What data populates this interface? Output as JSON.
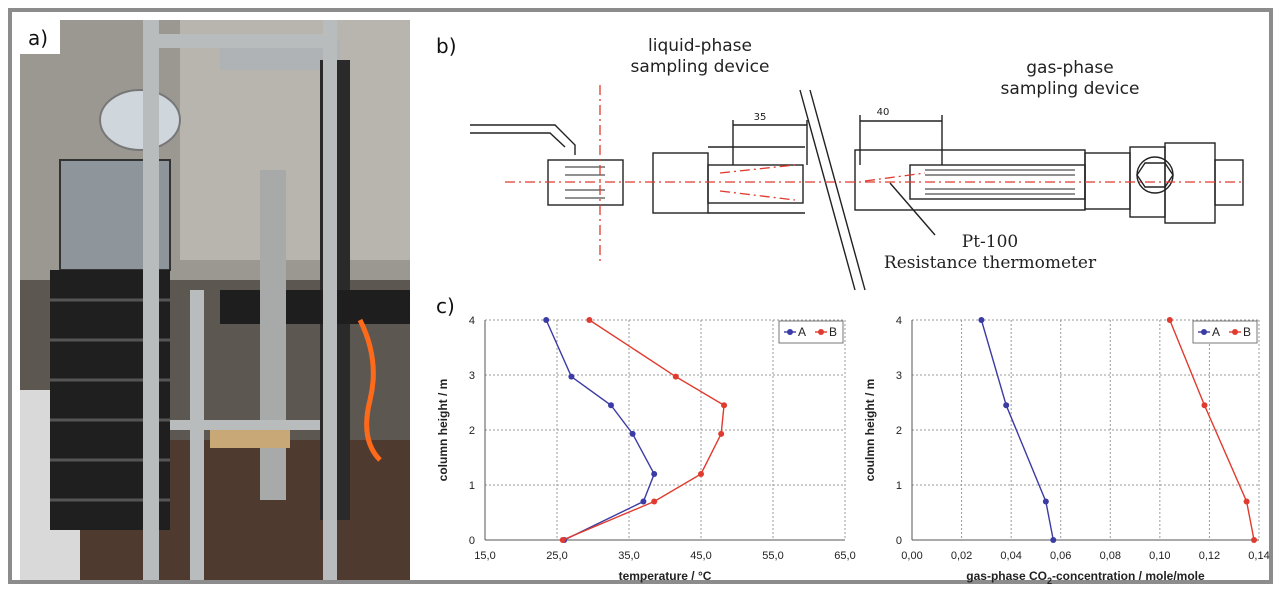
{
  "panels": {
    "a_label": "a)",
    "b_label": "b)",
    "c_label": "c)"
  },
  "schematic": {
    "liquid_line1": "liquid-phase",
    "liquid_line2": "sampling device",
    "gas_line1": "gas-phase",
    "gas_line2": "sampling device",
    "dim_35": "35",
    "dim_40": "40",
    "thermo_line1": "Pt-100",
    "thermo_line2": "Resistance thermometer"
  },
  "colors": {
    "series_A": "#3b3ba5",
    "series_B": "#e03b2f",
    "grid": "#9a9a9a"
  },
  "chart_data": [
    {
      "type": "line",
      "xlabel": "temperature / °C",
      "ylabel": "column height / m",
      "xlim": [
        15,
        65
      ],
      "ylim": [
        0,
        4
      ],
      "xticks": [
        "15,0",
        "25,0",
        "35,0",
        "45,0",
        "55,0",
        "65,0"
      ],
      "yticks": [
        "0",
        "1",
        "2",
        "3",
        "4"
      ],
      "grid": true,
      "legend": "top-right",
      "series": [
        {
          "name": "A",
          "points": [
            [
              26.0,
              0
            ],
            [
              37.0,
              0.7
            ],
            [
              38.5,
              1.2
            ],
            [
              35.5,
              1.93
            ],
            [
              32.5,
              2.45
            ],
            [
              27.0,
              2.97
            ],
            [
              23.5,
              4
            ]
          ]
        },
        {
          "name": "B",
          "points": [
            [
              25.8,
              0
            ],
            [
              38.5,
              0.7
            ],
            [
              45.0,
              1.2
            ],
            [
              47.8,
              1.93
            ],
            [
              48.2,
              2.45
            ],
            [
              41.5,
              2.97
            ],
            [
              29.5,
              4
            ]
          ]
        }
      ]
    },
    {
      "type": "line",
      "xlabel_pre": "gas-phase CO",
      "xlabel_sub": "2",
      "xlabel_post": "-concentration / mole/mole",
      "ylabel": "coulmn height / m",
      "xlim": [
        0,
        0.14
      ],
      "ylim": [
        0,
        4
      ],
      "xticks": [
        "0,00",
        "0,02",
        "0,04",
        "0,06",
        "0,08",
        "0,10",
        "0,12",
        "0,14"
      ],
      "yticks": [
        "0",
        "1",
        "2",
        "3",
        "4"
      ],
      "grid": true,
      "legend": "top-right",
      "series": [
        {
          "name": "A",
          "points": [
            [
              0.057,
              0
            ],
            [
              0.054,
              0.7
            ],
            [
              0.038,
              2.45
            ],
            [
              0.028,
              4
            ]
          ]
        },
        {
          "name": "B",
          "points": [
            [
              0.138,
              0
            ],
            [
              0.135,
              0.7
            ],
            [
              0.118,
              2.45
            ],
            [
              0.104,
              4
            ]
          ]
        }
      ]
    }
  ]
}
